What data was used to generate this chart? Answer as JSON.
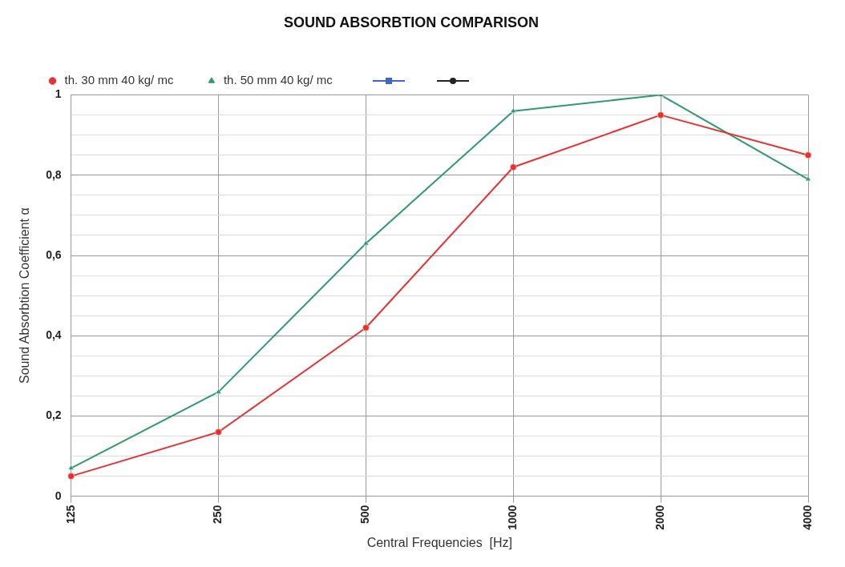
{
  "chart_data": {
    "type": "line",
    "title": "SOUND ABSORBTION COMPARISON",
    "xlabel": "Central Frequencies  [Hz]",
    "ylabel": "Sound Absorbtion Coefficient α",
    "categories": [
      "125",
      "250",
      "500",
      "1000",
      "2000",
      "4000"
    ],
    "series": [
      {
        "name": "th. 30 mm 40 kg/ mc",
        "color": "#e8312f",
        "marker": "circle",
        "values": [
          0.05,
          0.16,
          0.42,
          0.82,
          0.95,
          0.85
        ]
      },
      {
        "name": "th. 50 mm 40 kg/ mc",
        "color": "#2e9a6e",
        "marker": "triangle",
        "values": [
          0.07,
          0.26,
          0.63,
          0.96,
          1.0,
          0.79
        ]
      }
    ],
    "ylim": [
      0,
      1
    ],
    "yticks": [
      0,
      {
        "value": 0.05,
        "label": null
      },
      {
        "value": 0.1,
        "label": null
      },
      {
        "value": 0.15,
        "label": null
      },
      {
        "value": 0.2,
        "label": "0,2"
      },
      {
        "value": 0.25,
        "label": null
      },
      {
        "value": 0.3,
        "label": null
      },
      {
        "value": 0.35,
        "label": null
      },
      {
        "value": 0.4,
        "label": "0,4"
      },
      {
        "value": 0.45,
        "label": null
      },
      {
        "value": 0.5,
        "label": null
      },
      {
        "value": 0.55,
        "label": null
      },
      {
        "value": 0.6,
        "label": "0,6"
      },
      {
        "value": 0.65,
        "label": null
      },
      {
        "value": 0.7,
        "label": null
      },
      {
        "value": 0.75,
        "label": null
      },
      {
        "value": 0.8,
        "label": "0,8"
      },
      {
        "value": 0.85,
        "label": null
      },
      {
        "value": 0.9,
        "label": null
      },
      {
        "value": 0.95,
        "label": null
      },
      1
    ],
    "grid": true,
    "legend": "top",
    "line_style": "solid"
  }
}
